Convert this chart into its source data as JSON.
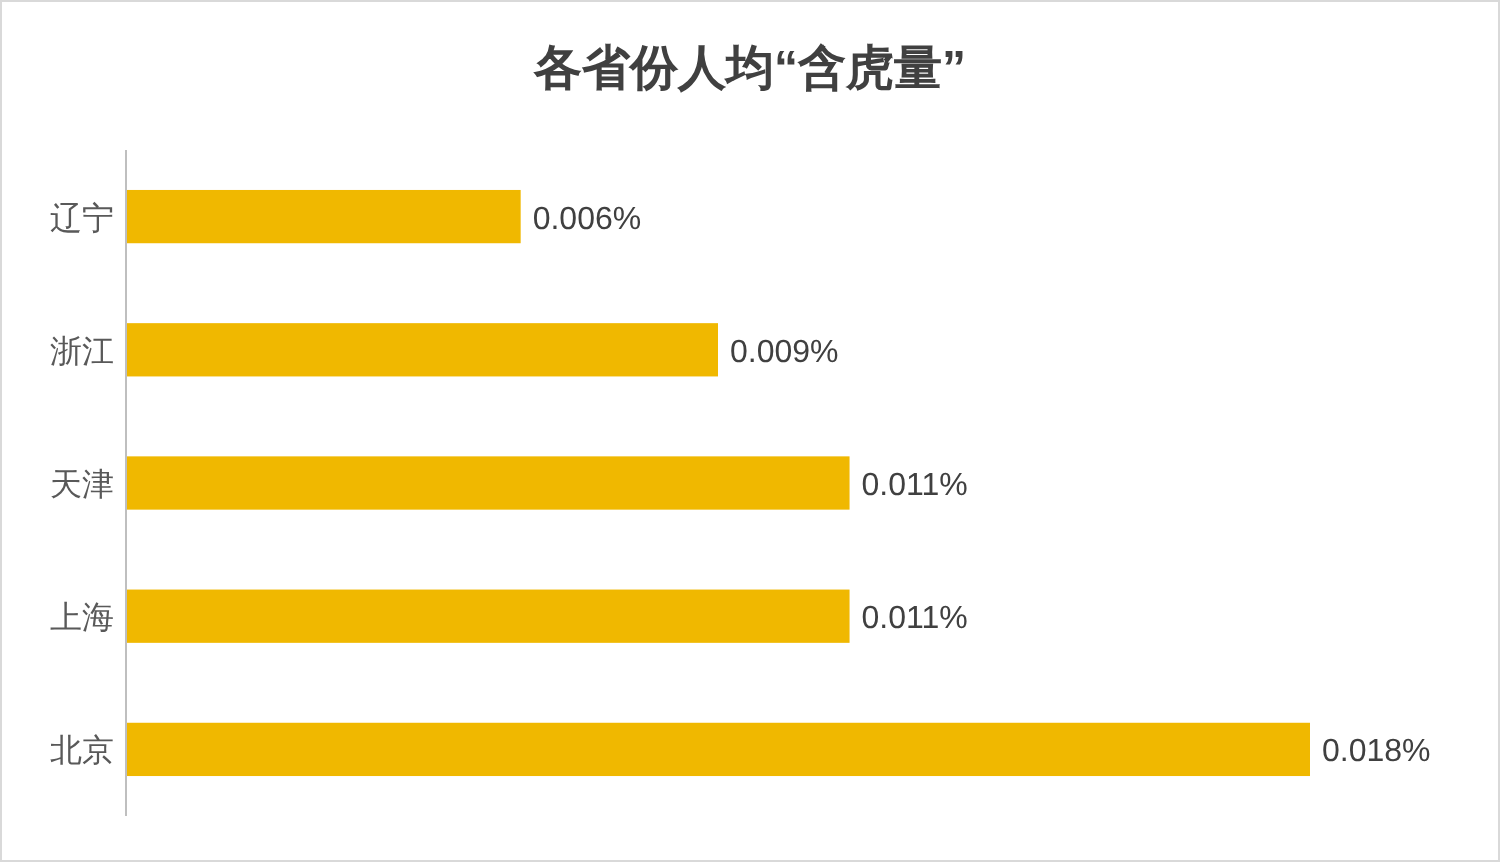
{
  "chart_data": {
    "type": "bar",
    "orientation": "horizontal",
    "title": "各省份人均“含虎量”",
    "categories": [
      "辽宁",
      "浙江",
      "天津",
      "上海",
      "北京"
    ],
    "values": [
      0.006,
      0.009,
      0.011,
      0.011,
      0.018
    ],
    "value_labels": [
      "0.006%",
      "0.009%",
      "0.011%",
      "0.011%",
      "0.018%"
    ],
    "color": "#f0b800"
  }
}
